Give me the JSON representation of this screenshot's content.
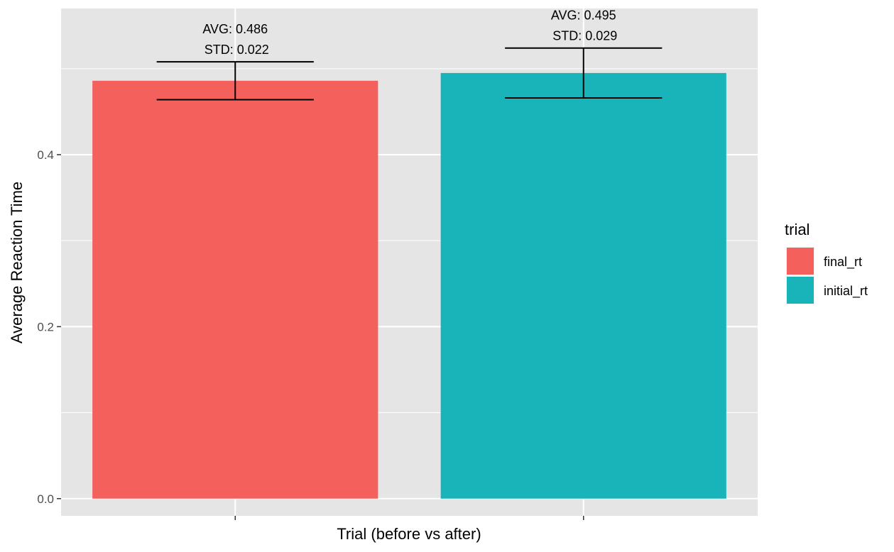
{
  "chart_data": {
    "type": "bar",
    "title": "",
    "xlabel": "Trial (before vs after)",
    "ylabel": "Average Reaction Time",
    "ylim": [
      -0.02,
      0.57
    ],
    "yticks": [
      0.0,
      0.2,
      0.4
    ],
    "ytick_labels": [
      "0.0",
      "0.2",
      "0.4"
    ],
    "categories": [
      "final_rt",
      "initial_rt"
    ],
    "values": [
      0.486,
      0.495
    ],
    "errors": [
      0.022,
      0.029
    ],
    "annotations": [
      {
        "avg": "AVG: 0.486",
        "std": "STD: 0.022"
      },
      {
        "avg": "AVG: 0.495",
        "std": "STD: 0.029"
      }
    ],
    "colors": [
      "#F4615C",
      "#19B4B9"
    ],
    "grid": true,
    "legend": {
      "title": "trial",
      "position": "right",
      "entries": [
        "final_rt",
        "initial_rt"
      ]
    }
  }
}
